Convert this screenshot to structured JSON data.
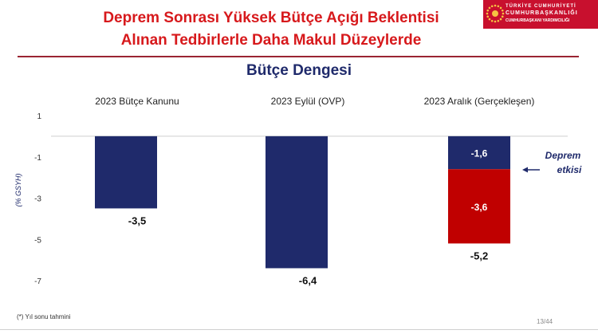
{
  "header": {
    "title_line1": "Deprem Sonrası Yüksek Bütçe Açığı Beklentisi",
    "title_line2": "Alınan Tedbirlerle Daha Makul Düzeylerde",
    "logo_line1": "TÜRKİYE CUMHURİYETİ",
    "logo_line2": "CUMHURBAŞKANLIĞI",
    "logo_line3": "CUMHURBAŞKANI YARDIMCILIĞI"
  },
  "colors": {
    "title": "#d7191c",
    "navy": "#1f2a6b",
    "red": "#c00000",
    "emblem": "#c8102e"
  },
  "footer": {
    "note": "(*) Yıl sonu tahmini",
    "page": "13/44"
  },
  "chart_data": {
    "type": "bar",
    "title": "Bütçe Dengesi",
    "ylabel": "(% GSYH)",
    "ylim": [
      -7,
      1
    ],
    "yticks": [
      1,
      -1,
      -3,
      -5,
      -7
    ],
    "ytick_labels": [
      "1",
      "-1",
      "-3",
      "-5",
      "-7"
    ],
    "categories": [
      "2023 Bütçe Kanunu",
      "2023 Eylül (OVP)",
      "2023 Aralık (Gerçekleşen)"
    ],
    "series": [
      {
        "values": [
          -3.5,
          -6.4,
          -1.6
        ],
        "color": "#1f2a6b",
        "labels": [
          "",
          "",
          "-1,6"
        ]
      },
      {
        "values": [
          0,
          0,
          -3.6
        ],
        "color": "#c00000",
        "labels": [
          "",
          "",
          "-3,6"
        ]
      }
    ],
    "totals": [
      -3.5,
      -6.4,
      -5.2
    ],
    "total_labels": [
      "-3,5",
      "-6,4",
      "-5,2"
    ],
    "annotation": {
      "line1": "Deprem",
      "line2": "etkisi",
      "category_index": 2
    },
    "grid": false
  }
}
